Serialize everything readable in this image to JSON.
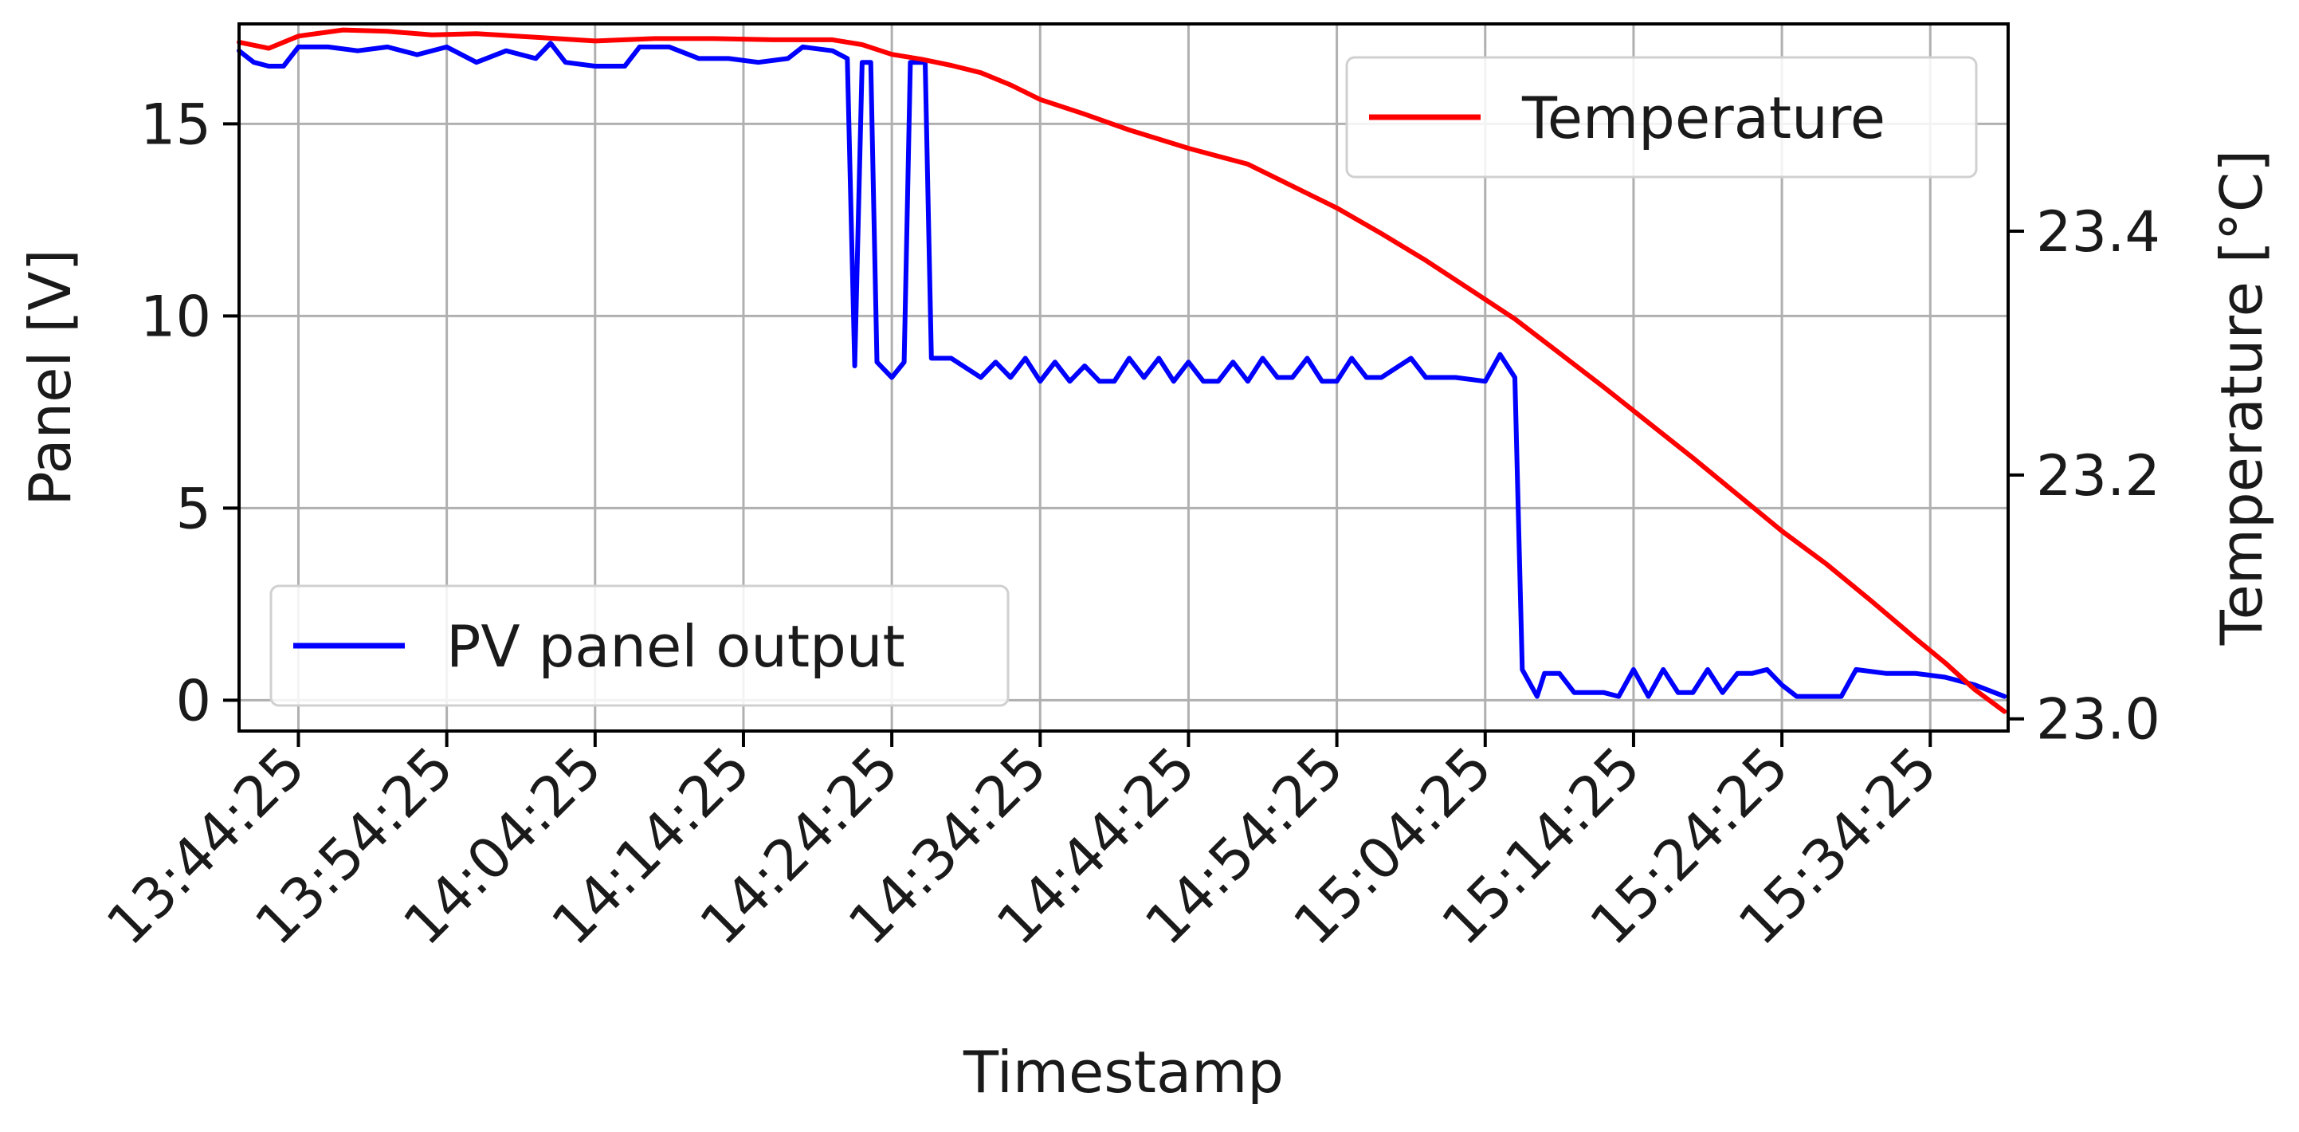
{
  "chart_data": {
    "type": "line",
    "xlabel": "Timestamp",
    "ylabel_left": "Panel [V]",
    "ylabel_right": "Temperature [°C]",
    "x_ticks": [
      "13:44:25",
      "13:54:25",
      "14:04:25",
      "14:14:25",
      "14:24:25",
      "14:34:25",
      "14:44:25",
      "14:54:25",
      "15:04:25",
      "15:14:25",
      "15:24:25",
      "15:34:25"
    ],
    "x_range": [
      "13:40:25",
      "15:39:40"
    ],
    "y_left_ticks": [
      0,
      5,
      10,
      15
    ],
    "y_left_range": [
      -0.8,
      17.6
    ],
    "y_right_ticks": [
      "23.0",
      "23.2",
      "23.4"
    ],
    "y_right_range": [
      22.99,
      23.57
    ],
    "grid": true,
    "series": [
      {
        "name": "PV panel output",
        "axis": "left",
        "color": "#0000ff",
        "legend_position": "lower-left",
        "points": [
          [
            "13:40:25",
            16.9
          ],
          [
            "13:41:25",
            16.6
          ],
          [
            "13:42:25",
            16.5
          ],
          [
            "13:43:25",
            16.5
          ],
          [
            "13:44:25",
            17.0
          ],
          [
            "13:46:25",
            17.0
          ],
          [
            "13:48:25",
            16.9
          ],
          [
            "13:50:25",
            17.0
          ],
          [
            "13:52:25",
            16.8
          ],
          [
            "13:54:25",
            17.0
          ],
          [
            "13:56:25",
            16.6
          ],
          [
            "13:58:25",
            16.9
          ],
          [
            "14:00:25",
            16.7
          ],
          [
            "14:01:25",
            17.1
          ],
          [
            "14:02:25",
            16.6
          ],
          [
            "14:04:25",
            16.5
          ],
          [
            "14:06:25",
            16.5
          ],
          [
            "14:07:25",
            17.0
          ],
          [
            "14:09:25",
            17.0
          ],
          [
            "14:11:25",
            16.7
          ],
          [
            "14:13:25",
            16.7
          ],
          [
            "14:15:25",
            16.6
          ],
          [
            "14:17:25",
            16.7
          ],
          [
            "14:18:25",
            17.0
          ],
          [
            "14:20:25",
            16.9
          ],
          [
            "14:21:25",
            16.7
          ],
          [
            "14:21:55",
            8.7
          ],
          [
            "14:22:25",
            16.6
          ],
          [
            "14:23:00",
            16.6
          ],
          [
            "14:23:25",
            8.8
          ],
          [
            "14:24:25",
            8.4
          ],
          [
            "14:25:15",
            8.8
          ],
          [
            "14:25:40",
            16.6
          ],
          [
            "14:26:40",
            16.6
          ],
          [
            "14:27:05",
            8.9
          ],
          [
            "14:28:25",
            8.9
          ],
          [
            "14:30:25",
            8.4
          ],
          [
            "14:31:25",
            8.8
          ],
          [
            "14:32:25",
            8.4
          ],
          [
            "14:33:25",
            8.9
          ],
          [
            "14:34:25",
            8.3
          ],
          [
            "14:35:25",
            8.8
          ],
          [
            "14:36:25",
            8.3
          ],
          [
            "14:37:25",
            8.7
          ],
          [
            "14:38:25",
            8.3
          ],
          [
            "14:39:25",
            8.3
          ],
          [
            "14:40:25",
            8.9
          ],
          [
            "14:41:25",
            8.4
          ],
          [
            "14:42:25",
            8.9
          ],
          [
            "14:43:25",
            8.3
          ],
          [
            "14:44:25",
            8.8
          ],
          [
            "14:45:25",
            8.3
          ],
          [
            "14:46:25",
            8.3
          ],
          [
            "14:47:25",
            8.8
          ],
          [
            "14:48:25",
            8.3
          ],
          [
            "14:49:25",
            8.9
          ],
          [
            "14:50:25",
            8.4
          ],
          [
            "14:51:25",
            8.4
          ],
          [
            "14:52:25",
            8.9
          ],
          [
            "14:53:25",
            8.3
          ],
          [
            "14:54:25",
            8.3
          ],
          [
            "14:55:25",
            8.9
          ],
          [
            "14:56:25",
            8.4
          ],
          [
            "14:57:25",
            8.4
          ],
          [
            "14:59:25",
            8.9
          ],
          [
            "15:00:25",
            8.4
          ],
          [
            "15:02:25",
            8.4
          ],
          [
            "15:04:25",
            8.3
          ],
          [
            "15:05:25",
            9.0
          ],
          [
            "15:06:25",
            8.4
          ],
          [
            "15:06:55",
            0.8
          ],
          [
            "15:07:55",
            0.1
          ],
          [
            "15:08:25",
            0.7
          ],
          [
            "15:09:25",
            0.7
          ],
          [
            "15:10:25",
            0.2
          ],
          [
            "15:12:25",
            0.2
          ],
          [
            "15:13:25",
            0.1
          ],
          [
            "15:14:25",
            0.8
          ],
          [
            "15:15:25",
            0.1
          ],
          [
            "15:16:25",
            0.8
          ],
          [
            "15:17:25",
            0.2
          ],
          [
            "15:18:25",
            0.2
          ],
          [
            "15:19:25",
            0.8
          ],
          [
            "15:20:25",
            0.2
          ],
          [
            "15:21:25",
            0.7
          ],
          [
            "15:22:25",
            0.7
          ],
          [
            "15:23:25",
            0.8
          ],
          [
            "15:24:25",
            0.4
          ],
          [
            "15:25:25",
            0.1
          ],
          [
            "15:27:25",
            0.1
          ],
          [
            "15:28:25",
            0.1
          ],
          [
            "15:29:25",
            0.8
          ],
          [
            "15:31:25",
            0.7
          ],
          [
            "15:33:25",
            0.7
          ],
          [
            "15:35:25",
            0.6
          ],
          [
            "15:37:25",
            0.4
          ],
          [
            "15:39:25",
            0.1
          ]
        ]
      },
      {
        "name": "Temperature",
        "axis": "right",
        "color": "#ff0000",
        "legend_position": "upper-right",
        "points": [
          [
            "13:40:25",
            23.555
          ],
          [
            "13:42:25",
            23.55
          ],
          [
            "13:44:25",
            23.56
          ],
          [
            "13:47:25",
            23.565
          ],
          [
            "13:50:25",
            23.564
          ],
          [
            "13:53:25",
            23.561
          ],
          [
            "13:56:25",
            23.562
          ],
          [
            "14:00:25",
            23.559
          ],
          [
            "14:04:25",
            23.556
          ],
          [
            "14:08:25",
            23.558
          ],
          [
            "14:12:25",
            23.558
          ],
          [
            "14:16:25",
            23.557
          ],
          [
            "14:20:25",
            23.557
          ],
          [
            "14:22:25",
            23.553
          ],
          [
            "14:24:25",
            23.545
          ],
          [
            "14:26:25",
            23.541
          ],
          [
            "14:28:25",
            23.536
          ],
          [
            "14:30:25",
            23.53
          ],
          [
            "14:32:25",
            23.52
          ],
          [
            "14:34:25",
            23.508
          ],
          [
            "14:37:25",
            23.496
          ],
          [
            "14:40:25",
            23.483
          ],
          [
            "14:44:25",
            23.468
          ],
          [
            "14:48:25",
            23.455
          ],
          [
            "14:51:25",
            23.437
          ],
          [
            "14:54:25",
            23.419
          ],
          [
            "14:57:25",
            23.398
          ],
          [
            "15:00:25",
            23.376
          ],
          [
            "15:03:25",
            23.352
          ],
          [
            "15:06:25",
            23.328
          ],
          [
            "15:09:25",
            23.3
          ],
          [
            "15:12:25",
            23.272
          ],
          [
            "15:15:25",
            23.243
          ],
          [
            "15:18:25",
            23.214
          ],
          [
            "15:21:25",
            23.184
          ],
          [
            "15:24:25",
            23.154
          ],
          [
            "15:27:25",
            23.127
          ],
          [
            "15:30:25",
            23.097
          ],
          [
            "15:33:25",
            23.066
          ],
          [
            "15:35:25",
            23.046
          ],
          [
            "15:37:25",
            23.024
          ],
          [
            "15:39:25",
            23.006
          ]
        ]
      }
    ]
  }
}
